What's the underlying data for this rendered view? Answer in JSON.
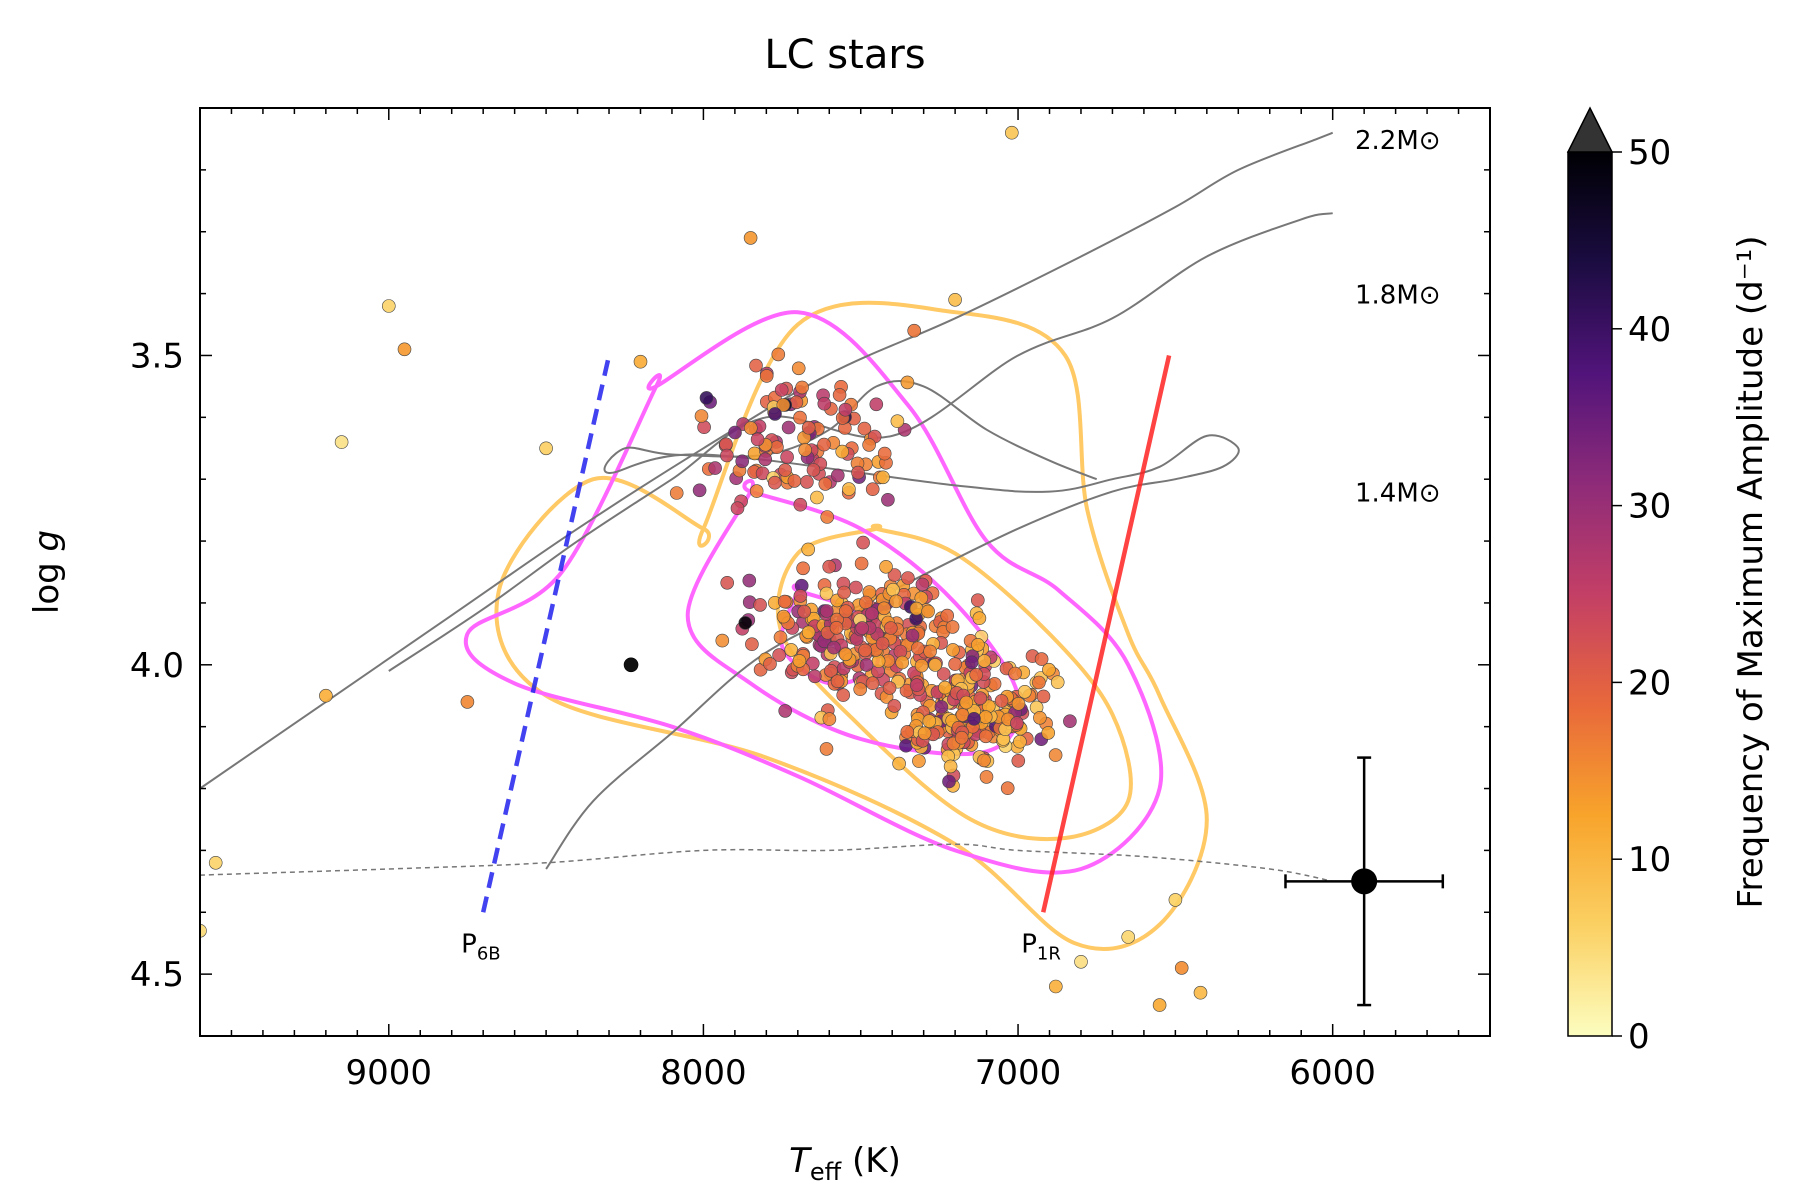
{
  "chart_data": {
    "type": "scatter",
    "title": "LC stars",
    "xlabel": {
      "symbol": "T",
      "subscript": "eff",
      "unit": "(K)"
    },
    "ylabel": {
      "text": "log",
      "italic": "g"
    },
    "xlim": [
      9600,
      5500
    ],
    "ylim": [
      4.6,
      3.1
    ],
    "x_ticks": [
      9000,
      8000,
      7000,
      6000
    ],
    "y_ticks": [
      3.5,
      4.0,
      4.5
    ],
    "x_tick_labels": [
      "9000",
      "8000",
      "7000",
      "6000"
    ],
    "y_tick_labels": [
      "3.5",
      "4.0",
      "4.5"
    ],
    "colorbar": {
      "label": "Frequency of Maximum Amplitude (d⁻¹)",
      "range": [
        0,
        50
      ],
      "ticks": [
        "0",
        "10",
        "20",
        "30",
        "40",
        "50"
      ],
      "extend": "max",
      "colormap": "inferno_r",
      "colormap_stops": [
        "#fcfdbf",
        "#fbd063",
        "#f8a42b",
        "#e8683b",
        "#c33f66",
        "#8e2b79",
        "#51147a",
        "#1b0c41",
        "#000004"
      ],
      "extend_color": "#333333"
    },
    "tracks": [
      {
        "label": "2.2M⊙",
        "color": "#777777",
        "points": [
          [
            9600,
            4.2
          ],
          [
            9200,
            4.06
          ],
          [
            8800,
            3.92
          ],
          [
            8400,
            3.78
          ],
          [
            8000,
            3.65
          ],
          [
            7600,
            3.53
          ],
          [
            7200,
            3.44
          ],
          [
            6800,
            3.34
          ],
          [
            6500,
            3.26
          ],
          [
            6300,
            3.2
          ],
          [
            6050,
            3.15
          ],
          [
            6000,
            3.14
          ]
        ]
      },
      {
        "label": "1.8M⊙",
        "color": "#777777",
        "points": [
          [
            9000,
            4.01
          ],
          [
            8700,
            3.91
          ],
          [
            8400,
            3.8
          ],
          [
            8100,
            3.7
          ],
          [
            7800,
            3.6
          ],
          [
            7400,
            3.63
          ],
          [
            7000,
            3.5
          ],
          [
            6700,
            3.44
          ],
          [
            6400,
            3.34
          ],
          [
            6100,
            3.28
          ],
          [
            6000,
            3.27
          ]
        ]
      },
      {
        "label": "1.4M⊙",
        "color": "#777777",
        "points": [
          [
            8500,
            4.33
          ],
          [
            8350,
            4.22
          ],
          [
            8100,
            4.11
          ],
          [
            7800,
            3.98
          ],
          [
            7400,
            3.88
          ],
          [
            7000,
            3.78
          ],
          [
            6700,
            3.72
          ],
          [
            6500,
            3.7
          ],
          [
            6350,
            3.68
          ],
          [
            6300,
            3.65
          ],
          [
            6400,
            3.63
          ],
          [
            6550,
            3.68
          ],
          [
            6700,
            3.7
          ],
          [
            6900,
            3.72
          ],
          [
            7200,
            3.71
          ],
          [
            8000,
            3.66
          ],
          [
            8300,
            3.69
          ],
          [
            8250,
            3.65
          ],
          [
            8100,
            3.66
          ],
          [
            7800,
            3.66
          ],
          [
            7600,
            3.62
          ],
          [
            7450,
            3.55
          ],
          [
            7300,
            3.55
          ],
          [
            7100,
            3.62
          ],
          [
            6900,
            3.67
          ],
          [
            6750,
            3.7
          ]
        ]
      }
    ],
    "track_14_label_only": "1.4M⊙",
    "zams": {
      "color": "#777777",
      "style": "dashed",
      "points": [
        [
          9600,
          4.34
        ],
        [
          9000,
          4.33
        ],
        [
          8500,
          4.32
        ],
        [
          8000,
          4.3
        ],
        [
          7600,
          4.3
        ],
        [
          7200,
          4.29
        ],
        [
          7000,
          4.3
        ],
        [
          6600,
          4.31
        ],
        [
          6200,
          4.33
        ],
        [
          6000,
          4.35
        ]
      ]
    },
    "instability_strip": [
      {
        "label_base": "P",
        "label_sub": "6B",
        "color": "#2222ee",
        "style": "dashed",
        "from": [
          8700,
          4.4
        ],
        "to": [
          8300,
          3.5
        ]
      },
      {
        "label_base": "P",
        "label_sub": "1R",
        "color": "#ff2222",
        "style": "solid",
        "from": [
          6920,
          4.4
        ],
        "to": [
          6520,
          3.5
        ]
      }
    ],
    "contours": [
      {
        "name": "density-outer",
        "color": "#ffc966",
        "points": [
          [
            8000,
            3.78
          ],
          [
            7700,
            3.45
          ],
          [
            7200,
            3.43
          ],
          [
            6850,
            3.5
          ],
          [
            6780,
            3.75
          ],
          [
            6650,
            3.95
          ],
          [
            6550,
            4.05
          ],
          [
            6400,
            4.25
          ],
          [
            6550,
            4.42
          ],
          [
            6820,
            4.45
          ],
          [
            7200,
            4.29
          ],
          [
            7800,
            4.15
          ],
          [
            8500,
            4.05
          ],
          [
            8650,
            3.88
          ],
          [
            8350,
            3.7
          ],
          [
            8000,
            3.78
          ]
        ]
      },
      {
        "name": "density-mid",
        "color": "#ffc966",
        "points": [
          [
            7450,
            3.78
          ],
          [
            7200,
            3.82
          ],
          [
            6900,
            3.95
          ],
          [
            6700,
            4.08
          ],
          [
            6650,
            4.22
          ],
          [
            6850,
            4.28
          ],
          [
            7150,
            4.25
          ],
          [
            7500,
            4.1
          ],
          [
            7750,
            3.95
          ],
          [
            7700,
            3.82
          ],
          [
            7450,
            3.78
          ]
        ]
      },
      {
        "name": "magnetic-outer",
        "color": "#ff66ff",
        "points": [
          [
            8150,
            3.55
          ],
          [
            7700,
            3.43
          ],
          [
            7350,
            3.58
          ],
          [
            7100,
            3.8
          ],
          [
            6870,
            3.88
          ],
          [
            6650,
            4.0
          ],
          [
            6550,
            4.2
          ],
          [
            6800,
            4.33
          ],
          [
            7200,
            4.3
          ],
          [
            7700,
            4.18
          ],
          [
            8100,
            4.1
          ],
          [
            8600,
            4.03
          ],
          [
            8750,
            3.95
          ],
          [
            8450,
            3.85
          ],
          [
            8150,
            3.55
          ]
        ]
      },
      {
        "name": "magnetic-mid",
        "color": "#ff66ff",
        "points": [
          [
            7850,
            3.72
          ],
          [
            7500,
            3.78
          ],
          [
            7200,
            3.9
          ],
          [
            7000,
            4.05
          ],
          [
            7100,
            4.14
          ],
          [
            7500,
            4.12
          ],
          [
            7850,
            4.03
          ],
          [
            8050,
            3.92
          ],
          [
            7850,
            3.72
          ]
        ]
      },
      {
        "name": "magnetic-inner",
        "color": "#ff66ff",
        "points": [
          [
            7700,
            3.88
          ],
          [
            7500,
            3.92
          ],
          [
            7450,
            4.0
          ],
          [
            7600,
            4.03
          ],
          [
            7750,
            3.97
          ],
          [
            7700,
            3.88
          ]
        ]
      }
    ],
    "error_bar": {
      "x": 5900,
      "y": 4.35,
      "xerr": 250,
      "yerr": 0.2
    },
    "black_point": {
      "x": 8230,
      "y": 4.0
    },
    "scatter_seed": 137,
    "scatter_count": 620,
    "highlight_points": [
      [
        7020,
        3.14
      ],
      [
        7850,
        3.31
      ],
      [
        9000,
        3.42
      ],
      [
        8950,
        3.49
      ],
      [
        9150,
        3.64
      ],
      [
        8500,
        3.65
      ],
      [
        9200,
        4.05
      ],
      [
        9550,
        4.32
      ],
      [
        9600,
        4.43
      ],
      [
        8750,
        4.06
      ],
      [
        6880,
        4.52
      ],
      [
        6420,
        4.53
      ],
      [
        6480,
        4.49
      ],
      [
        6550,
        4.55
      ],
      [
        6800,
        4.48
      ],
      [
        6650,
        4.44
      ],
      [
        6500,
        4.38
      ],
      [
        7330,
        3.46
      ],
      [
        7200,
        3.41
      ],
      [
        8200,
        3.51
      ]
    ]
  }
}
